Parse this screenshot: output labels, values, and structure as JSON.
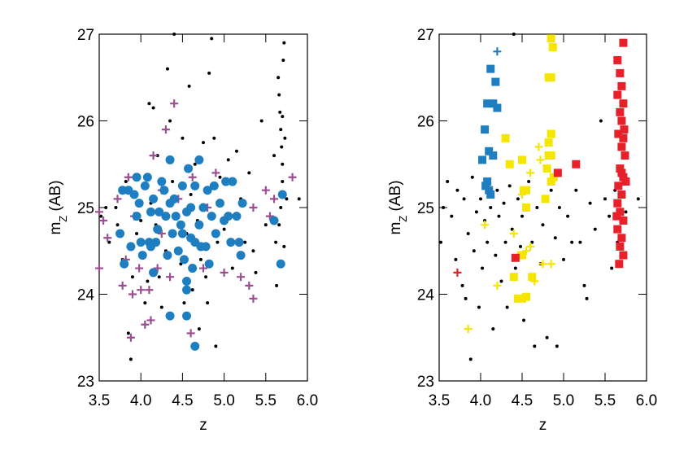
{
  "chart_data": [
    {
      "type": "scatter",
      "xlabel": "z",
      "ylabel_parts": [
        "m",
        "Z",
        " (AB)"
      ],
      "xlim": [
        3.5,
        6.0
      ],
      "ylim": [
        23,
        27
      ],
      "xticks": [
        3.5,
        {
          "value": 4,
          "label": "4.0"
        },
        4.5,
        {
          "value": 5,
          "label": "5.0"
        },
        5.5,
        {
          "value": 6,
          "label": "6.0"
        }
      ],
      "yticks": [
        23,
        24,
        25,
        26,
        27
      ],
      "series": [
        {
          "marker": "dot",
          "color": "#000000",
          "x": [
            3.52,
            3.58,
            3.62,
            3.7,
            3.72,
            3.78,
            3.82,
            3.85,
            3.88,
            3.9,
            3.95,
            4.0,
            4.02,
            4.05,
            4.08,
            4.1,
            4.12,
            4.15,
            4.18,
            4.2,
            4.22,
            4.25,
            4.3,
            4.32,
            4.35,
            4.38,
            4.4,
            4.45,
            4.48,
            4.5,
            4.52,
            4.55,
            4.58,
            4.6,
            4.62,
            4.65,
            4.68,
            4.7,
            4.72,
            4.75,
            4.78,
            4.8,
            4.82,
            4.85,
            4.88,
            4.9,
            4.92,
            4.95,
            5.0,
            5.05,
            5.1,
            5.15,
            5.2,
            5.25,
            5.3,
            5.35,
            5.38,
            5.45,
            5.5,
            5.6,
            5.62,
            5.63,
            5.65,
            5.66,
            5.67,
            5.68,
            5.69,
            5.7,
            5.7,
            5.71,
            5.72,
            5.73,
            5.66,
            5.68,
            5.72,
            5.75,
            5.7,
            5.9
          ],
          "values": [
            24.9,
            25.0,
            24.6,
            25.0,
            24.8,
            24.4,
            25.3,
            23.55,
            23.25,
            24.2,
            24.7,
            24.85,
            24.45,
            23.9,
            24.15,
            26.2,
            25.05,
            26.15,
            24.8,
            25.6,
            24.2,
            23.85,
            24.5,
            26.6,
            26.0,
            25.3,
            27.0,
            24.9,
            24.35,
            25.8,
            23.9,
            24.7,
            26.4,
            25.15,
            24.05,
            25.5,
            24.85,
            23.6,
            24.4,
            25.75,
            24.2,
            23.9,
            26.55,
            26.95,
            25.8,
            23.4,
            24.6,
            25.35,
            24.75,
            25.55,
            24.3,
            25.65,
            25.1,
            24.6,
            25.4,
            24.5,
            24.25,
            26.0,
            24.8,
            25.6,
            24.6,
            24.1,
            26.5,
            26.3,
            26.1,
            25.9,
            25.7,
            25.5,
            25.3,
            26.7,
            26.9,
            25.8,
            24.8,
            25.0,
            24.55,
            25.1,
            26.05,
            25.1
          ]
        },
        {
          "marker": "plus",
          "color": "#9b4f8f",
          "x": [
            3.5,
            3.55,
            3.6,
            3.72,
            3.78,
            3.82,
            3.85,
            3.88,
            3.9,
            3.92,
            3.98,
            4.0,
            4.05,
            4.1,
            4.12,
            4.15,
            4.2,
            4.25,
            4.3,
            4.4,
            4.45,
            4.55,
            4.6,
            4.62,
            4.75,
            4.9,
            5.0,
            5.2,
            5.3,
            5.35,
            5.5,
            5.55,
            5.6,
            5.82,
            3.5,
            4.8,
            4.25,
            5.35,
            4.35
          ],
          "values": [
            24.95,
            24.85,
            24.65,
            25.1,
            24.1,
            24.4,
            25.35,
            23.5,
            24.0,
            24.9,
            24.3,
            24.05,
            23.65,
            24.05,
            23.7,
            25.6,
            24.3,
            24.7,
            25.9,
            26.2,
            25.1,
            24.05,
            23.55,
            25.35,
            24.3,
            25.4,
            24.25,
            24.2,
            24.1,
            23.95,
            25.2,
            24.9,
            25.1,
            25.35,
            24.3,
            25.0,
            25.2,
            25.0,
            24.2
          ]
        },
        {
          "marker": "circle",
          "color": "#1f7ec0",
          "x": [
            3.78,
            3.85,
            3.92,
            3.75,
            3.8,
            3.88,
            3.95,
            3.98,
            4.0,
            4.02,
            4.05,
            4.08,
            4.1,
            4.12,
            4.12,
            4.15,
            4.15,
            4.18,
            4.2,
            4.22,
            4.25,
            4.28,
            4.3,
            4.32,
            4.35,
            4.35,
            4.38,
            4.4,
            4.42,
            4.45,
            4.48,
            4.5,
            4.5,
            4.52,
            4.55,
            4.55,
            4.57,
            4.6,
            4.6,
            4.62,
            4.65,
            4.65,
            4.7,
            4.7,
            4.72,
            4.75,
            4.78,
            4.8,
            4.82,
            4.85,
            4.88,
            4.9,
            4.95,
            5.0,
            5.02,
            5.05,
            5.08,
            5.1,
            5.15,
            5.18,
            5.2,
            5.22,
            5.6,
            5.7,
            5.68,
            4.55,
            4.35,
            4.65,
            3.95,
            4.55
          ],
          "values": [
            25.2,
            25.2,
            25.15,
            24.7,
            24.35,
            24.55,
            24.9,
            25.05,
            24.6,
            24.45,
            25.25,
            25.35,
            24.6,
            24.95,
            24.55,
            24.25,
            25.1,
            24.6,
            24.75,
            24.95,
            25.3,
            25.2,
            24.9,
            24.45,
            25.55,
            25.05,
            24.7,
            25.1,
            24.9,
            24.5,
            24.8,
            24.7,
            25.25,
            24.4,
            24.95,
            24.15,
            25.45,
            25.0,
            24.65,
            24.3,
            25.25,
            24.6,
            25.55,
            24.8,
            24.55,
            25.0,
            24.55,
            25.2,
            24.35,
            24.9,
            25.25,
            24.7,
            25.05,
            24.85,
            25.3,
            24.9,
            24.6,
            25.3,
            24.9,
            24.6,
            24.45,
            25.05,
            24.85,
            25.15,
            24.35,
            23.75,
            23.75,
            23.4,
            25.35,
            24.05
          ]
        }
      ]
    },
    {
      "type": "scatter",
      "xlabel": "z",
      "ylabel_parts": [
        "m",
        "Z",
        " (AB)"
      ],
      "xlim": [
        3.5,
        6.0
      ],
      "ylim": [
        23,
        27
      ],
      "xticks": [
        3.5,
        {
          "value": 4,
          "label": "4.0"
        },
        4.5,
        {
          "value": 5,
          "label": "5.0"
        },
        5.5,
        {
          "value": 6,
          "label": "6.0"
        }
      ],
      "yticks": [
        23,
        24,
        25,
        26,
        27
      ],
      "series": [
        {
          "marker": "dot",
          "color": "#000000",
          "x": [
            3.52,
            3.55,
            3.6,
            3.65,
            3.7,
            3.72,
            3.78,
            3.8,
            3.82,
            3.85,
            3.88,
            3.9,
            3.92,
            3.95,
            3.98,
            4.0,
            4.02,
            4.05,
            4.08,
            4.12,
            4.15,
            4.18,
            4.2,
            4.22,
            4.25,
            4.28,
            4.3,
            4.32,
            4.35,
            4.38,
            4.4,
            4.42,
            4.45,
            4.48,
            4.5,
            4.52,
            4.58,
            4.62,
            4.65,
            4.68,
            4.72,
            4.75,
            4.8,
            4.85,
            4.9,
            4.92,
            4.95,
            5.0,
            5.05,
            5.1,
            5.15,
            5.2,
            5.25,
            5.28,
            5.32,
            5.38,
            5.45,
            5.5,
            5.55,
            5.58,
            5.62,
            5.65,
            5.75,
            5.9
          ],
          "values": [
            24.6,
            25.0,
            25.3,
            24.9,
            24.4,
            25.2,
            24.1,
            25.1,
            23.95,
            24.7,
            23.25,
            25.35,
            24.5,
            24.95,
            23.85,
            25.1,
            24.3,
            24.85,
            24.6,
            25.0,
            23.6,
            24.45,
            25.2,
            24.9,
            24.15,
            25.05,
            24.6,
            23.85,
            25.25,
            24.75,
            27.0,
            24.3,
            25.1,
            24.55,
            24.9,
            23.7,
            25.3,
            24.6,
            23.4,
            25.0,
            24.35,
            24.8,
            23.5,
            25.2,
            24.65,
            23.4,
            25.0,
            24.4,
            24.9,
            24.6,
            25.2,
            24.6,
            24.1,
            23.95,
            25.05,
            24.75,
            26.0,
            25.1,
            24.9,
            24.3,
            25.2,
            24.6,
            24.95,
            25.1
          ]
        },
        {
          "marker": "square",
          "color": "#1f7ec0",
          "x": [
            4.02,
            4.05,
            4.08,
            4.12,
            4.15,
            4.18,
            4.2,
            4.1,
            4.15,
            4.08,
            4.1,
            4.12,
            4.06
          ],
          "values": [
            25.55,
            25.9,
            26.2,
            26.6,
            26.2,
            26.45,
            26.15,
            25.65,
            25.6,
            25.3,
            25.2,
            25.15,
            25.25
          ]
        },
        {
          "marker": "plus",
          "color": "#1f7ec0",
          "x": [
            4.2
          ],
          "values": [
            26.8
          ]
        },
        {
          "marker": "square",
          "color": "#f5e600",
          "x": [
            4.3,
            4.35,
            4.5,
            4.52,
            4.55,
            4.4,
            4.45,
            4.5,
            4.55,
            4.85,
            4.87,
            4.82,
            4.85,
            4.85,
            4.82,
            4.85,
            4.8,
            4.85,
            4.88,
            4.82,
            4.78,
            4.62,
            4.5,
            4.55
          ],
          "values": [
            25.8,
            25.5,
            25.55,
            25.2,
            25.0,
            24.2,
            23.95,
            23.95,
            23.97,
            26.95,
            26.85,
            26.5,
            26.5,
            25.85,
            25.75,
            25.6,
            25.45,
            25.3,
            25.35,
            25.6,
            25.1,
            24.2,
            24.45,
            25.2
          ]
        },
        {
          "marker": "plus",
          "color": "#f5e600",
          "x": [
            3.85,
            4.05,
            4.2,
            4.45,
            4.4,
            4.55,
            4.6,
            4.65,
            4.72,
            4.75,
            4.85,
            4.5,
            4.7,
            4.6
          ],
          "values": [
            23.6,
            24.8,
            24.1,
            24.45,
            24.7,
            24.5,
            24.55,
            24.15,
            25.55,
            24.35,
            24.35,
            25.15,
            25.7,
            25.4
          ]
        },
        {
          "marker": "square",
          "color": "#e8202a",
          "x": [
            5.72,
            5.65,
            5.68,
            5.7,
            5.65,
            5.72,
            5.68,
            5.7,
            5.73,
            5.66,
            5.72,
            5.7,
            5.74,
            5.68,
            5.72,
            5.66,
            5.7,
            5.65,
            5.68,
            5.72,
            5.65,
            5.7,
            5.68,
            5.72,
            5.67,
            5.7,
            5.75,
            4.42,
            4.93,
            5.15,
            5.64
          ],
          "values": [
            26.9,
            26.7,
            26.55,
            26.4,
            26.3,
            26.2,
            26.1,
            26.0,
            25.9,
            25.85,
            25.8,
            25.7,
            25.6,
            25.45,
            25.35,
            25.25,
            25.15,
            25.05,
            24.95,
            24.85,
            24.75,
            24.65,
            24.55,
            24.45,
            24.35,
            25.4,
            25.3,
            24.42,
            25.4,
            25.5,
            24.9
          ]
        },
        {
          "marker": "plus",
          "color": "#e8202a",
          "x": [
            3.72
          ],
          "values": [
            24.25
          ]
        }
      ]
    }
  ]
}
